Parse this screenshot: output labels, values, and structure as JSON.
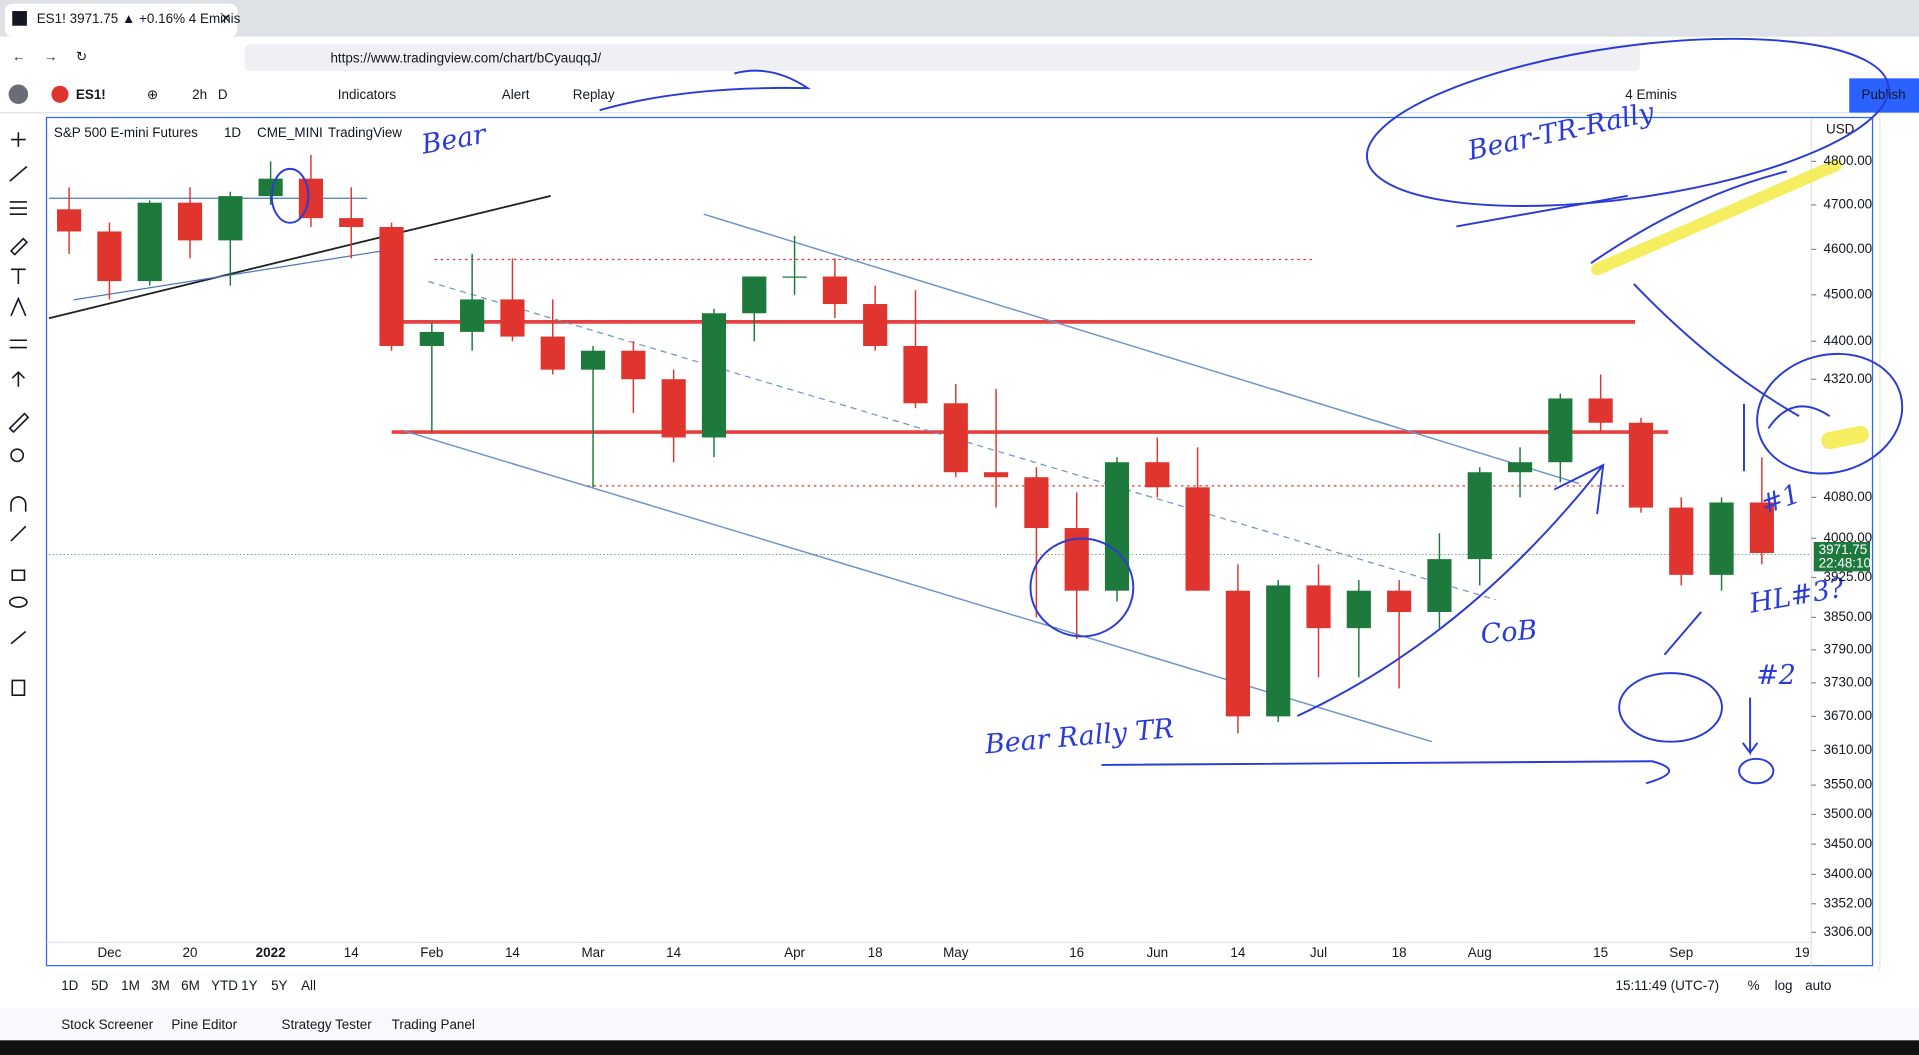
{
  "browser": {
    "tab_title": "ES1! 3971.75 ▲ +0.16% 4 Eminis",
    "url": "https://www.tradingview.com/chart/bCyauqqJ/"
  },
  "toolbar": {
    "symbol": "ES1!",
    "interval": "2h",
    "interval_alt": "D",
    "indicators": "Indicators",
    "alert": "Alert",
    "replay": "Replay",
    "layout": "4 Eminis",
    "publish": "Publish"
  },
  "chart_data": {
    "type": "candlestick",
    "title": "S&P 500 E-mini Futures",
    "interval_label": "1D",
    "exchange": "CME_MINI",
    "source": "TradingView",
    "currency": "USD",
    "countdown": "22:48:10",
    "categories": [
      null,
      "Dec",
      null,
      "20",
      null,
      "2022",
      null,
      "14",
      null,
      "Feb",
      null,
      "14",
      null,
      "Mar",
      null,
      "14",
      null,
      null,
      "Apr",
      null,
      "18",
      null,
      "May",
      null,
      null,
      "16",
      null,
      "Jun",
      null,
      "14",
      null,
      "Jul",
      null,
      "18",
      null,
      "Aug",
      null,
      null,
      "15",
      null,
      "Sep",
      null,
      null,
      "19"
    ],
    "open": [
      4690,
      4640,
      4530,
      4705,
      4620,
      4720,
      4760,
      4670,
      4650,
      4390,
      4420,
      4490,
      4410,
      4340,
      4380,
      4320,
      4200,
      4460,
      4540,
      4540,
      4480,
      4390,
      4270,
      4130,
      4120,
      4020,
      3900,
      4150,
      4100,
      3900,
      3670,
      3910,
      3830,
      3900,
      3860,
      3960,
      4130,
      4150,
      4280,
      4230,
      4060,
      3930,
      4070,
      null
    ],
    "high": [
      4740,
      4660,
      4710,
      4740,
      4730,
      4800,
      4815,
      4740,
      4660,
      4440,
      4590,
      4580,
      4490,
      4390,
      4400,
      4340,
      4470,
      4540,
      4630,
      4580,
      4520,
      4510,
      4310,
      4300,
      4140,
      4090,
      4160,
      4200,
      4180,
      3950,
      3920,
      3950,
      3920,
      3920,
      4010,
      4140,
      4180,
      4290,
      4330,
      4240,
      4080,
      4080,
      4160,
      null
    ],
    "low": [
      4590,
      4490,
      4520,
      4580,
      4520,
      4700,
      4650,
      4580,
      4380,
      4210,
      4380,
      4400,
      4330,
      4100,
      4250,
      4150,
      4160,
      4400,
      4500,
      4450,
      4380,
      4260,
      4120,
      4060,
      3850,
      3810,
      3880,
      4080,
      3900,
      3640,
      3660,
      3740,
      3740,
      3720,
      3830,
      3910,
      4080,
      4110,
      4210,
      4050,
      3910,
      3900,
      3950,
      null
    ],
    "close": [
      4640,
      4530,
      4705,
      4620,
      4720,
      4760,
      4670,
      4650,
      4390,
      4420,
      4490,
      4410,
      4340,
      4380,
      4320,
      4200,
      4460,
      4540,
      4540,
      4480,
      4390,
      4270,
      4130,
      4120,
      4020,
      3900,
      4150,
      4100,
      3900,
      3670,
      3910,
      3830,
      3900,
      3860,
      3960,
      4130,
      4150,
      4280,
      4230,
      4060,
      3930,
      4070,
      3971.75,
      null
    ],
    "up_color": "#1e7a3c",
    "down_color": "#e0352f",
    "log_scale": true,
    "ylim": [
      3290,
      4900
    ],
    "yticks": [
      {
        "value": 4800,
        "label": "4800.00"
      },
      {
        "value": 4700,
        "label": "4700.00"
      },
      {
        "value": 4600,
        "label": "4600.00"
      },
      {
        "value": 4500,
        "label": "4500.00"
      },
      {
        "value": 4400,
        "label": "4400.00"
      },
      {
        "value": 4320,
        "label": "4320.00"
      },
      {
        "value": 4080,
        "label": "4080.00"
      },
      {
        "value": 4000,
        "label": "4000.00"
      },
      {
        "value": 3925,
        "label": "3925.00"
      },
      {
        "value": 3850,
        "label": "3850.00"
      },
      {
        "value": 3790,
        "label": "3790.00"
      },
      {
        "value": 3730,
        "label": "3730.00"
      },
      {
        "value": 3670,
        "label": "3670.00"
      },
      {
        "value": 3610,
        "label": "3610.00"
      },
      {
        "value": 3550,
        "label": "3550.00"
      },
      {
        "value": 3500,
        "label": "3500.00"
      },
      {
        "value": 3450,
        "label": "3450.00"
      },
      {
        "value": 3400,
        "label": "3400.00"
      },
      {
        "value": 3352,
        "label": "3352.00"
      },
      {
        "value": 3306,
        "label": "3306.00"
      }
    ],
    "annotations": [
      "Bear",
      "Bear-TR-Rally",
      "Bear Rally TR",
      "CoB",
      "HL#3?",
      "#1",
      "#2"
    ]
  },
  "bottom_bar": {
    "ranges": [
      "1D",
      "5D",
      "1M",
      "3M",
      "6M",
      "YTD",
      "1Y",
      "5Y",
      "All"
    ],
    "clock": "15:11:49 (UTC-7)",
    "percent": "%",
    "log": "log",
    "auto": "auto"
  },
  "panels": [
    "Stock Screener",
    "Pine Editor",
    "Strategy Tester",
    "Trading Panel"
  ]
}
